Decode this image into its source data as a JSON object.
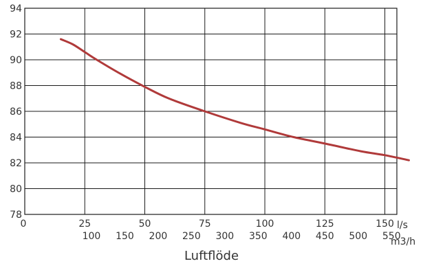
{
  "chart_data": {
    "type": "line",
    "title": "",
    "xlabel": "Luftflöde",
    "ylabel": "",
    "x_unit_primary": "l/s",
    "x_unit_secondary": "m3/h",
    "xlim": [
      0,
      155
    ],
    "ylim": [
      78,
      94
    ],
    "grid": true,
    "y_ticks": [
      78,
      80,
      82,
      84,
      86,
      88,
      90,
      92,
      94
    ],
    "x_ticks_primary": [
      0,
      25,
      50,
      75,
      100,
      125,
      150
    ],
    "x_ticks_secondary": [
      100,
      150,
      200,
      250,
      300,
      350,
      400,
      450,
      500,
      550
    ],
    "series": [
      {
        "color": "#b03a3a",
        "x": [
          15,
          20,
          25,
          30,
          40,
          50,
          60,
          75,
          90,
          100,
          112,
          125,
          140,
          150,
          160
        ],
        "y": [
          91.6,
          91.2,
          90.6,
          90.0,
          88.9,
          87.9,
          87.0,
          86.0,
          85.1,
          84.6,
          84.0,
          83.5,
          82.9,
          82.6,
          82.2
        ]
      }
    ]
  }
}
